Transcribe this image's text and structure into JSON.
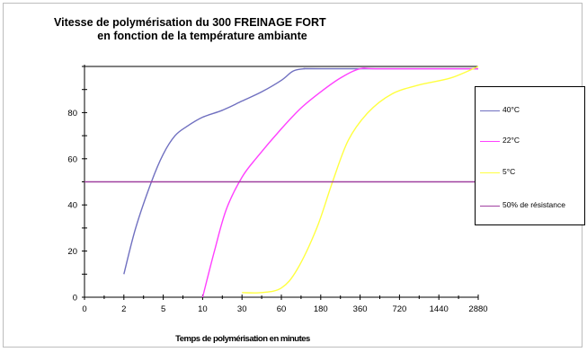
{
  "chart_data": {
    "type": "line",
    "title": [
      "Vitesse  de  polymérisation  du  300  FREINAGE  FORT",
      "en  fonction  de  la  température  ambiante"
    ],
    "xlabel": "Temps de polymérisation en minutes",
    "ylabel": "",
    "x_ticks": [
      "0",
      "2",
      "5",
      "10",
      "30",
      "60",
      "180",
      "360",
      "720",
      "1440",
      "2880"
    ],
    "y_ticks": [
      "0",
      "20",
      "40",
      "60",
      "80"
    ],
    "ylim": [
      0,
      100
    ],
    "x_scale": "categorical-log-like",
    "grid": false,
    "legend_position": "right",
    "series": [
      {
        "name": "40°C",
        "color": "#7070c0",
        "points": [
          [
            1.0,
            10
          ],
          [
            1.3,
            30
          ],
          [
            1.7,
            50
          ],
          [
            2.0,
            62
          ],
          [
            2.3,
            70
          ],
          [
            2.6,
            74
          ],
          [
            3.0,
            78
          ],
          [
            3.5,
            81
          ],
          [
            4.0,
            85
          ],
          [
            4.5,
            89
          ],
          [
            5.0,
            94
          ],
          [
            5.3,
            98
          ],
          [
            5.6,
            99
          ],
          [
            6.0,
            99
          ],
          [
            10.0,
            99
          ]
        ]
      },
      {
        "name": "22°C",
        "color": "#ff40ff",
        "points": [
          [
            3.0,
            0
          ],
          [
            3.3,
            20
          ],
          [
            3.6,
            38
          ],
          [
            4.0,
            52
          ],
          [
            4.4,
            61
          ],
          [
            5.0,
            73
          ],
          [
            5.5,
            82
          ],
          [
            6.0,
            89
          ],
          [
            6.5,
            95
          ],
          [
            7.0,
            99
          ],
          [
            7.5,
            99
          ],
          [
            10.0,
            99
          ]
        ]
      },
      {
        "name": "5°C",
        "color": "#ffff40",
        "points": [
          [
            4.0,
            2
          ],
          [
            4.5,
            2
          ],
          [
            5.0,
            4
          ],
          [
            5.4,
            12
          ],
          [
            5.9,
            30
          ],
          [
            6.3,
            50
          ],
          [
            6.7,
            68
          ],
          [
            7.2,
            80
          ],
          [
            7.8,
            88
          ],
          [
            8.5,
            92
          ],
          [
            9.3,
            95
          ],
          [
            10.0,
            100
          ]
        ]
      },
      {
        "name": "50% de résistance",
        "color": "#a040a0",
        "points": [
          [
            0,
            50
          ],
          [
            10,
            50
          ]
        ]
      }
    ]
  }
}
